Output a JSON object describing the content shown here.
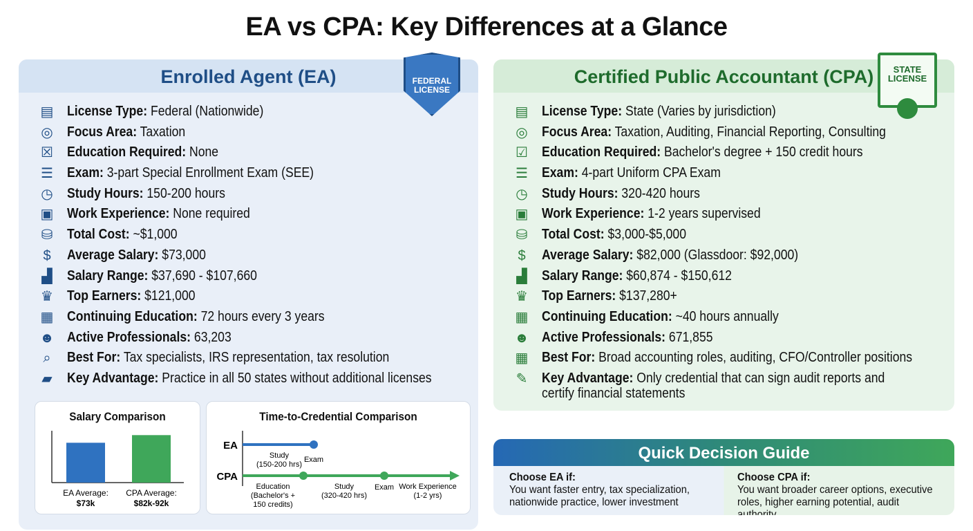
{
  "title": "EA vs CPA: Key Differences at a Glance",
  "ea": {
    "heading": "Enrolled Agent (EA)",
    "badge": "FEDERAL LICENSE",
    "color": "#1f4e86",
    "rows": [
      {
        "icon": "license-book-icon",
        "label": "License Type:",
        "value": " Federal (Nationwide)"
      },
      {
        "icon": "target-icon",
        "label": "Focus Area:",
        "value": " Taxation"
      },
      {
        "icon": "certificate-x-icon",
        "label": "Education Required:",
        "value": " None"
      },
      {
        "icon": "clipboard-icon",
        "label": "Exam:",
        "value": " 3-part Special Enrollment Exam (SEE)"
      },
      {
        "icon": "clock-icon",
        "label": "Study Hours:",
        "value": " 150-200 hours"
      },
      {
        "icon": "briefcase-x-icon",
        "label": "Work Experience:",
        "value": " None required"
      },
      {
        "icon": "coins-icon",
        "label": "Total Cost:",
        "value": " ~$1,000"
      },
      {
        "icon": "money-bag-icon",
        "label": "Average Salary:",
        "value": " $73,000"
      },
      {
        "icon": "bar-chart-icon",
        "label": "Salary Range:",
        "value": " $37,690 - $107,660"
      },
      {
        "icon": "crown-icon",
        "label": "Top Earners:",
        "value": " $121,000"
      },
      {
        "icon": "calendar-icon",
        "label": "Continuing Education:",
        "value": " 72 hours every 3 years"
      },
      {
        "icon": "people-icon",
        "label": "Active Professionals:",
        "value": " 63,203"
      },
      {
        "icon": "magnifier-tax-icon",
        "label": "Best For:",
        "value": " Tax specialists, IRS representation, tax resolution"
      },
      {
        "icon": "us-map-icon",
        "label": "Key Advantage:",
        "value": " Practice in all 50 states without additional licenses"
      }
    ]
  },
  "cpa": {
    "heading": "Certified Public Accountant (CPA)",
    "badge": "STATE LICENSE",
    "color": "#2a7d3a",
    "rows": [
      {
        "icon": "license-book-icon",
        "label": "License Type:",
        "value": " State (Varies by jurisdiction)"
      },
      {
        "icon": "target-icon",
        "label": "Focus Area:",
        "value": " Taxation, Auditing, Financial Reporting, Consulting"
      },
      {
        "icon": "certificate-check-icon",
        "label": "Education Required:",
        "value": " Bachelor's degree + 150 credit hours"
      },
      {
        "icon": "clipboard-icon",
        "label": "Exam:",
        "value": " 4-part Uniform CPA Exam"
      },
      {
        "icon": "clock-icon",
        "label": "Study Hours:",
        "value": " 320-420 hours"
      },
      {
        "icon": "briefcase-check-icon",
        "label": "Work Experience:",
        "value": " 1-2 years supervised"
      },
      {
        "icon": "coins-icon",
        "label": "Total Cost:",
        "value": " $3,000-$5,000"
      },
      {
        "icon": "money-bag-icon",
        "label": "Average Salary:",
        "value": " $82,000 (Glassdoor: $92,000)"
      },
      {
        "icon": "bar-chart-icon",
        "label": "Salary Range:",
        "value": " $60,874 - $150,612"
      },
      {
        "icon": "crown-icon",
        "label": "Top Earners:",
        "value": " $137,280+"
      },
      {
        "icon": "calendar-icon",
        "label": "Continuing Education:",
        "value": " ~40 hours annually"
      },
      {
        "icon": "people-icon",
        "label": "Active Professionals:",
        "value": " 671,855"
      },
      {
        "icon": "calculator-icon",
        "label": "Best For:",
        "value": " Broad accounting roles, auditing, CFO/Controller positions"
      },
      {
        "icon": "signed-document-icon",
        "label": "Key Advantage:",
        "value": " Only credential that can sign audit reports and",
        "value2": "certify financial statements"
      }
    ]
  },
  "chart_data": {
    "type": "bar",
    "title": "Salary Comparison",
    "categories": [
      "EA Average:",
      "CPA Average:"
    ],
    "value_labels": [
      "$73k",
      "$82k-92k"
    ],
    "values": [
      73,
      87
    ],
    "ylim": [
      0,
      95
    ],
    "colors": [
      "#2f72c0",
      "#3fa75a"
    ],
    "grid": false
  },
  "timeline": {
    "title": "Time-to-Credential Comparison",
    "ea": {
      "label": "EA",
      "steps": [
        {
          "label": "Study",
          "sub": "(150-200 hrs)"
        },
        {
          "label": "Exam"
        }
      ]
    },
    "cpa": {
      "label": "CPA",
      "steps": [
        {
          "label": "Education",
          "sub": "(Bachelor's +",
          "sub2": "150 credits)"
        },
        {
          "label": "Study",
          "sub": "(320-420 hrs)"
        },
        {
          "label": "Exam"
        },
        {
          "label": "Work Experience",
          "sub": "(1-2 yrs)"
        }
      ]
    }
  },
  "guide": {
    "title": "Quick Decision Guide",
    "ea": {
      "heading": "Choose EA if:",
      "line1": "You want faster entry, tax specialization,",
      "line2": "nationwide practice, lower investment"
    },
    "cpa": {
      "heading": "Choose CPA if:",
      "line1": "You want broader career options, executive",
      "line2": "roles, higher earning potential, audit authority"
    }
  }
}
